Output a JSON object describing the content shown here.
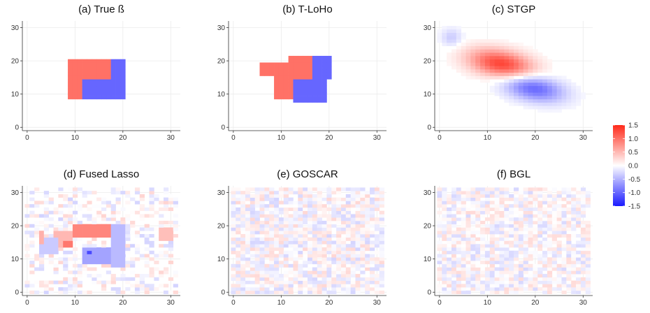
{
  "chart_data": {
    "type": "heatmap",
    "grid_size": 32,
    "xlim": [
      -1,
      32
    ],
    "ylim": [
      -1,
      32
    ],
    "ticks": [
      0,
      10,
      20,
      30
    ],
    "grid": true,
    "legend_position": "right",
    "colorscale": {
      "min": -1.5,
      "max": 1.5,
      "low_color": "#1a1aff",
      "mid_color": "#ffffff",
      "high_color": "#ff2a1a",
      "tick_values": [
        1.5,
        1.0,
        0.5,
        0.0,
        -0.5,
        -1.0,
        -1.5
      ],
      "tick_labels": [
        "1.5",
        "1.0",
        "0.5",
        "0.0",
        "-0.5",
        "-1.0",
        "-1.5"
      ]
    },
    "panels": [
      {
        "title": "(a) True ß",
        "method": "true",
        "regions": [
          {
            "x": [
              9,
              21
            ],
            "y": [
              9,
              21
            ],
            "value": 1.0
          },
          {
            "x": [
              12,
              21
            ],
            "y": [
              9,
              15
            ],
            "value": -1.0
          },
          {
            "x": [
              18,
              21
            ],
            "y": [
              9,
              21
            ],
            "value": -1.0
          }
        ]
      },
      {
        "title": "(b) T-LoHo",
        "method": "tloho",
        "regions": [
          {
            "x": [
              9,
              17
            ],
            "y": [
              9,
              20
            ],
            "value": 1.0
          },
          {
            "x": [
              6,
              11
            ],
            "y": [
              16,
              20
            ],
            "value": 1.0
          },
          {
            "x": [
              12,
              18
            ],
            "y": [
              20,
              22
            ],
            "value": 1.0
          },
          {
            "x": [
              17,
              21
            ],
            "y": [
              15,
              22
            ],
            "value": -1.0
          },
          {
            "x": [
              13,
              20
            ],
            "y": [
              8,
              15
            ],
            "value": -1.0
          }
        ]
      },
      {
        "title": "(c) STGP",
        "method": "stgp",
        "blobs": [
          {
            "cx": 13,
            "cy": 19,
            "sx": 4.8,
            "sy": 3.2,
            "rho": -0.35,
            "amp": 1.35
          },
          {
            "cx": 19.5,
            "cy": 12,
            "sx": 4.5,
            "sy": 3.0,
            "rho": -0.35,
            "amp": -1.05
          },
          {
            "cx": 2.5,
            "cy": 27,
            "sx": 1.6,
            "sy": 2.0,
            "rho": 0,
            "amp": -0.35
          }
        ]
      },
      {
        "title": "(d) Fused Lasso",
        "method": "fusedlasso",
        "regions": [
          {
            "x": [
              10,
              18
            ],
            "y": [
              17,
              21
            ],
            "value": 0.85
          },
          {
            "x": [
              6,
              10
            ],
            "y": [
              14,
              19
            ],
            "value": 0.5
          },
          {
            "x": [
              3,
              7
            ],
            "y": [
              12,
              17
            ],
            "value": -0.35
          },
          {
            "x": [
              12,
              18
            ],
            "y": [
              9,
              14
            ],
            "value": -0.6
          },
          {
            "x": [
              13,
              14
            ],
            "y": [
              12,
              13
            ],
            "value": -1.2
          },
          {
            "x": [
              18,
              21
            ],
            "y": [
              8,
              21
            ],
            "value": -0.45
          },
          {
            "x": [
              28,
              31
            ],
            "y": [
              16,
              20
            ],
            "value": 0.45
          },
          {
            "x": [
              3,
              4
            ],
            "y": [
              15,
              19
            ],
            "value": 0.55
          },
          {
            "x": [
              8,
              10
            ],
            "y": [
              14,
              16
            ],
            "value": 0.95
          }
        ],
        "noise_amp": 0.3,
        "noise_density": 0.45
      },
      {
        "title": "(e) GOSCAR",
        "method": "goscar",
        "noise_amp": 0.28,
        "noise_density": 0.9
      },
      {
        "title": "(f) BGL",
        "method": "bgl",
        "noise_amp": 0.26,
        "noise_density": 0.9
      }
    ]
  }
}
